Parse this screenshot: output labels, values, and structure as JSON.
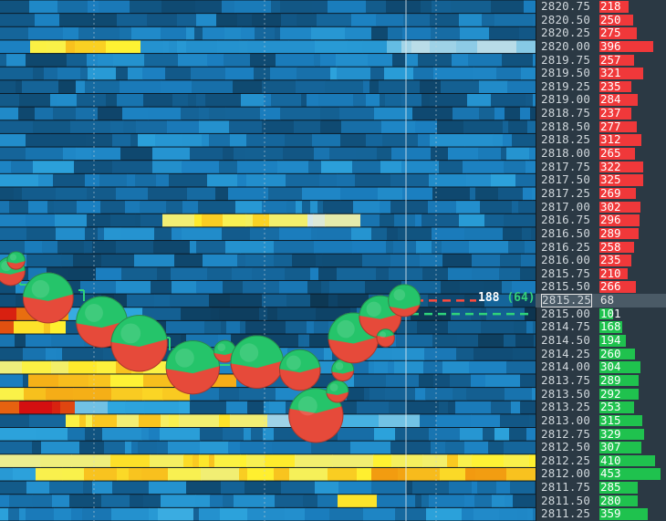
{
  "chart_data": {
    "type": "heatmap",
    "title": "",
    "price_axis": {
      "prices": [
        "2820.75",
        "2820.50",
        "2820.25",
        "2820.00",
        "2819.75",
        "2819.50",
        "2819.25",
        "2819.00",
        "2818.75",
        "2818.50",
        "2818.25",
        "2818.00",
        "2817.75",
        "2817.50",
        "2817.25",
        "2817.00",
        "2816.75",
        "2816.50",
        "2816.25",
        "2816.00",
        "2815.75",
        "2815.50",
        "2815.25",
        "2815.00",
        "2814.75",
        "2814.50",
        "2814.25",
        "2814.00",
        "2813.75",
        "2813.50",
        "2813.25",
        "2813.00",
        "2812.75",
        "2812.50",
        "2812.25",
        "2812.00",
        "2811.75",
        "2811.50",
        "2811.25"
      ]
    },
    "dom_ladder": {
      "asks": [
        {
          "price": "2820.75",
          "size": "218"
        },
        {
          "price": "2820.50",
          "size": "250"
        },
        {
          "price": "2820.25",
          "size": "275"
        },
        {
          "price": "2820.00",
          "size": "396"
        },
        {
          "price": "2819.75",
          "size": "257"
        },
        {
          "price": "2819.50",
          "size": "321"
        },
        {
          "price": "2819.25",
          "size": "235"
        },
        {
          "price": "2819.00",
          "size": "284"
        },
        {
          "price": "2818.75",
          "size": "237"
        },
        {
          "price": "2818.50",
          "size": "277"
        },
        {
          "price": "2818.25",
          "size": "312"
        },
        {
          "price": "2818.00",
          "size": "265"
        },
        {
          "price": "2817.75",
          "size": "322"
        },
        {
          "price": "2817.50",
          "size": "325"
        },
        {
          "price": "2817.25",
          "size": "269"
        },
        {
          "price": "2817.00",
          "size": "302"
        },
        {
          "price": "2816.75",
          "size": "296"
        },
        {
          "price": "2816.50",
          "size": "289"
        },
        {
          "price": "2816.25",
          "size": "258"
        },
        {
          "price": "2816.00",
          "size": "235"
        },
        {
          "price": "2815.75",
          "size": "210"
        },
        {
          "price": "2815.50",
          "size": "266"
        }
      ],
      "current": {
        "price": "2815.25",
        "size": "68"
      },
      "bids": [
        {
          "price": "2815.00",
          "size": "101"
        },
        {
          "price": "2814.75",
          "size": "168"
        },
        {
          "price": "2814.50",
          "size": "194"
        },
        {
          "price": "2814.25",
          "size": "260"
        },
        {
          "price": "2814.00",
          "size": "304"
        },
        {
          "price": "2813.75",
          "size": "289"
        },
        {
          "price": "2813.50",
          "size": "292"
        },
        {
          "price": "2813.25",
          "size": "253"
        },
        {
          "price": "2813.00",
          "size": "315"
        },
        {
          "price": "2812.75",
          "size": "329"
        },
        {
          "price": "2812.50",
          "size": "307"
        },
        {
          "price": "2812.25",
          "size": "410"
        },
        {
          "price": "2812.00",
          "size": "453"
        },
        {
          "price": "2811.75",
          "size": "285"
        },
        {
          "price": "2811.50",
          "size": "280"
        },
        {
          "price": "2811.25",
          "size": "359"
        }
      ]
    },
    "last_trade": {
      "volume": "188",
      "delta": "(64)",
      "price": "2815.25"
    },
    "trade_bubbles": [
      {
        "t": 0.02,
        "price": 2815.8,
        "volume": 20,
        "buy_fraction": 0.55
      },
      {
        "t": 0.03,
        "price": 2816.0,
        "volume": 8,
        "buy_fraction": 0.6
      },
      {
        "t": 0.09,
        "price": 2815.3,
        "volume": 60,
        "buy_fraction": 0.5
      },
      {
        "t": 0.19,
        "price": 2814.85,
        "volume": 62,
        "buy_fraction": 0.55
      },
      {
        "t": 0.26,
        "price": 2814.45,
        "volume": 75,
        "buy_fraction": 0.5
      },
      {
        "t": 0.36,
        "price": 2814.0,
        "volume": 68,
        "buy_fraction": 0.55
      },
      {
        "t": 0.42,
        "price": 2814.3,
        "volume": 12,
        "buy_fraction": 0.6
      },
      {
        "t": 0.48,
        "price": 2814.1,
        "volume": 66,
        "buy_fraction": 0.55
      },
      {
        "t": 0.56,
        "price": 2813.95,
        "volume": 40,
        "buy_fraction": 0.5
      },
      {
        "t": 0.59,
        "price": 2813.1,
        "volume": 70,
        "buy_fraction": 0.4
      },
      {
        "t": 0.63,
        "price": 2813.55,
        "volume": 12,
        "buy_fraction": 0.6
      },
      {
        "t": 0.64,
        "price": 2813.95,
        "volume": 12,
        "buy_fraction": 0.6
      },
      {
        "t": 0.66,
        "price": 2814.55,
        "volume": 60,
        "buy_fraction": 0.55
      },
      {
        "t": 0.71,
        "price": 2814.95,
        "volume": 42,
        "buy_fraction": 0.5
      },
      {
        "t": 0.72,
        "price": 2814.55,
        "volume": 8,
        "buy_fraction": 0.4
      },
      {
        "t": 0.755,
        "price": 2815.25,
        "volume": 25,
        "buy_fraction": 0.7
      }
    ],
    "best_ask_line_price": 2815.25,
    "best_bid_line_price": 2815.0,
    "grid": true
  },
  "colors": {
    "ask": "#f0383a",
    "bid": "#1fc24e",
    "heat_low": "#0b1f2c",
    "heat_mid": "#1b7fc0",
    "heat_high": "#fff230",
    "heat_max": "#d40f10",
    "ask_line": "#ff4a3d",
    "bid_line": "#2fd37a"
  }
}
